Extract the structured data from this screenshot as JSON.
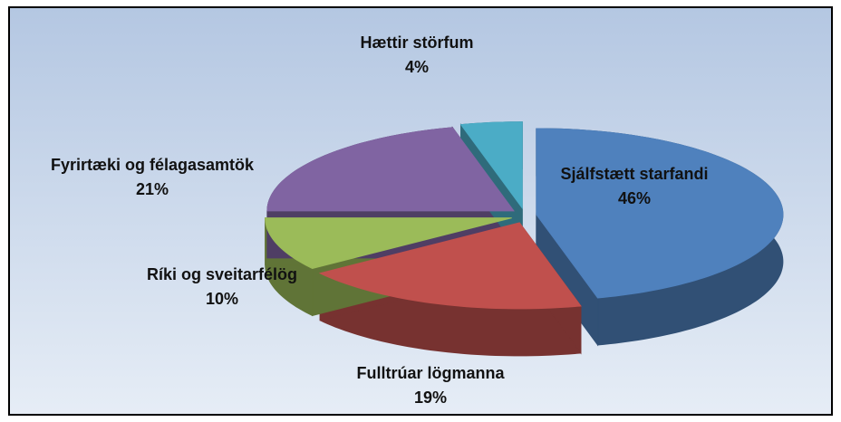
{
  "chart_data": {
    "type": "pie3d",
    "categories": [
      "Sjálfstætt starfandi",
      "Fulltrúar lögmanna",
      "Ríki og sveitarfélög",
      "Fyrirtæki og félagasamtök",
      "Hættir störfum"
    ],
    "values": [
      46,
      19,
      10,
      21,
      4
    ],
    "value_labels": [
      "46%",
      "19%",
      "10%",
      "21%",
      "4%"
    ],
    "colors": [
      "#4f81bd",
      "#c0504d",
      "#9bbb59",
      "#8064a2",
      "#4bacc6"
    ]
  }
}
